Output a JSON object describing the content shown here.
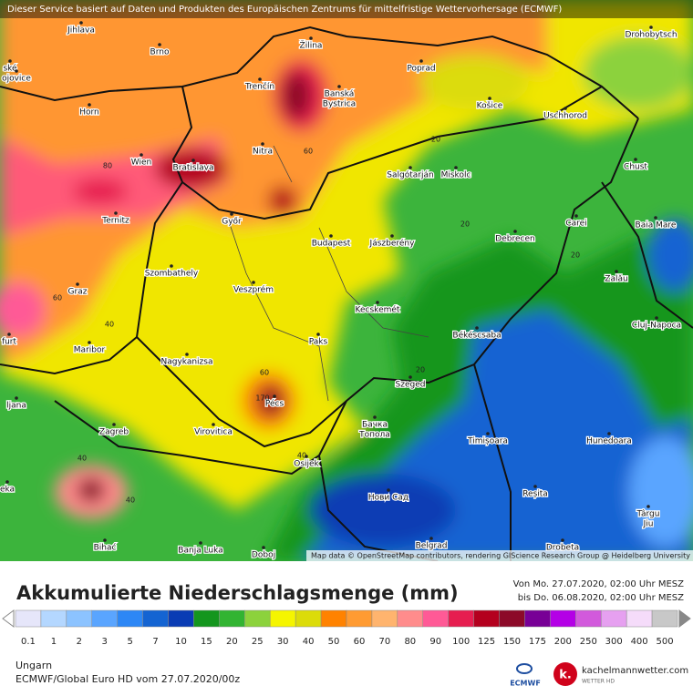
{
  "header": {
    "notice": "Dieser Service basiert auf Daten und Produkten des Europäischen Zentrums für mittelfristige Wettervorhersage (ECMWF)"
  },
  "map": {
    "places": [
      {
        "lines": [
          "Jihlava"
        ]
      },
      {
        "lines": [
          "Brno"
        ]
      },
      {
        "lines": [
          "Žilina"
        ]
      },
      {
        "lines": [
          "Poprad"
        ]
      },
      {
        "lines": [
          "Drohobytsch"
        ]
      },
      {
        "lines": [
          "ské"
        ]
      },
      {
        "lines": [
          "ojovice"
        ]
      },
      {
        "lines": [
          "Trenčín"
        ]
      },
      {
        "lines": [
          "Banská",
          "Bystrica"
        ]
      },
      {
        "lines": [
          "Horn"
        ]
      },
      {
        "lines": [
          "Košice"
        ]
      },
      {
        "lines": [
          "Uschhorod"
        ]
      },
      {
        "lines": [
          "Wien"
        ]
      },
      {
        "lines": [
          "Bratislava"
        ]
      },
      {
        "lines": [
          "Nitra"
        ]
      },
      {
        "lines": [
          "Salgótarján"
        ]
      },
      {
        "lines": [
          "Miskolc"
        ]
      },
      {
        "lines": [
          "Chust"
        ]
      },
      {
        "lines": [
          "Ternitz"
        ]
      },
      {
        "lines": [
          "Győr"
        ]
      },
      {
        "lines": [
          "Budapest"
        ]
      },
      {
        "lines": [
          "Jászberény"
        ]
      },
      {
        "lines": [
          "Debrecen"
        ]
      },
      {
        "lines": [
          "Carei"
        ]
      },
      {
        "lines": [
          "Baia Mare"
        ]
      },
      {
        "lines": [
          "Szombathely"
        ]
      },
      {
        "lines": [
          "Veszprém"
        ]
      },
      {
        "lines": [
          "Graz"
        ]
      },
      {
        "lines": [
          "Zalău"
        ]
      },
      {
        "lines": [
          "Kecskemét"
        ]
      },
      {
        "lines": [
          "Cluj-Napoca"
        ]
      },
      {
        "lines": [
          "furt"
        ]
      },
      {
        "lines": [
          "Maribor"
        ]
      },
      {
        "lines": [
          "Paks"
        ]
      },
      {
        "lines": [
          "Békéscsaba"
        ]
      },
      {
        "lines": [
          "Nagykanizsa"
        ]
      },
      {
        "lines": [
          "Szeged"
        ]
      },
      {
        "lines": [
          "ljana"
        ]
      },
      {
        "lines": [
          "Pécs"
        ]
      },
      {
        "lines": [
          "Zagreb"
        ]
      },
      {
        "lines": [
          "Virovitica"
        ]
      },
      {
        "lines": [
          "Бачка",
          "Топола"
        ]
      },
      {
        "lines": [
          "Timișoara"
        ]
      },
      {
        "lines": [
          "Hunedoara"
        ]
      },
      {
        "lines": [
          "Osijek"
        ]
      },
      {
        "lines": [
          "eka"
        ]
      },
      {
        "lines": [
          "Нови Сад"
        ]
      },
      {
        "lines": [
          "Reșita"
        ]
      },
      {
        "lines": [
          "Târgu",
          "Jiu"
        ]
      },
      {
        "lines": [
          "Bihać"
        ]
      },
      {
        "lines": [
          "Banja Luka"
        ]
      },
      {
        "lines": [
          "Doboj"
        ]
      },
      {
        "lines": [
          "Belgrad"
        ]
      },
      {
        "lines": [
          "Drobeta"
        ]
      }
    ],
    "contour_labels": [
      "80",
      "60",
      "20",
      "20",
      "20",
      "60",
      "40",
      "60",
      "170",
      "20",
      "40",
      "40",
      "40"
    ],
    "attribution": "Map data © OpenStreetMap contributors, rendering GIScience Research Group @ Heidelberg University"
  },
  "legend": {
    "title": "Akkumulierte Niederschlagsmenge (mm)",
    "period": [
      "Von Mo. 27.07.2020, 02:00 Uhr MESZ",
      "bis Do. 06.08.2020, 02:00 Uhr MESZ"
    ],
    "ticks": [
      0.1,
      1,
      2,
      3,
      5,
      7,
      10,
      15,
      20,
      25,
      30,
      40,
      50,
      60,
      70,
      80,
      90,
      100,
      125,
      150,
      175,
      200,
      250,
      300,
      400,
      500
    ],
    "colors": [
      "#e6e6fa",
      "#b4d7ff",
      "#8cc3ff",
      "#5aa5ff",
      "#2d87f5",
      "#1464d2",
      "#0a3cb4",
      "#14961e",
      "#32b432",
      "#8cd23c",
      "#f5f500",
      "#dcdc0a",
      "#ff8200",
      "#ff9b32",
      "#ffb46e",
      "#ff8c8c",
      "#ff5a96",
      "#e61e50",
      "#b4001e",
      "#8c0a28",
      "#780096",
      "#b400e6",
      "#d25adc",
      "#e6a0f0",
      "#f5dcfa",
      "#c8c8c8"
    ]
  },
  "footer": {
    "region": "Ungarn",
    "model": "ECMWF/Global Euro HD vom  27.07.2020/00z",
    "logos": [
      "ECMWF",
      "kachelmannwetter.com",
      "WETTER HD"
    ]
  }
}
